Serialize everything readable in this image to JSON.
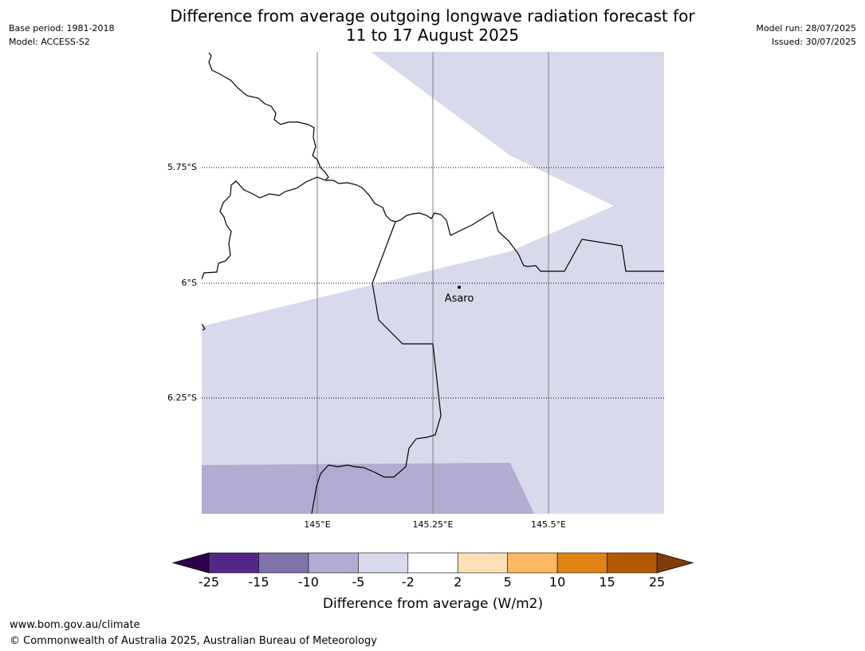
{
  "header": {
    "title_line1": "Difference from average outgoing longwave radiation forecast for",
    "title_line2": "11 to 17 August 2025",
    "base_period": "Base period: 1981-2018",
    "model": "Model: ACCESS-S2",
    "model_run": "Model run: 28/07/2025",
    "issued": "Issued: 30/07/2025"
  },
  "map": {
    "lat_labels": [
      "5.75°S",
      "6°S",
      "6.25°S"
    ],
    "lon_labels": [
      "145°E",
      "145.25°E",
      "145.5°E"
    ],
    "place_name": "Asaro"
  },
  "colorbar": {
    "title": "Difference from average (W/m2)",
    "ticks": [
      "-25",
      "-15",
      "-10",
      "-5",
      "-2",
      "2",
      "5",
      "10",
      "15",
      "25"
    ],
    "colors": [
      "#2d004b",
      "#542788",
      "#8073ac",
      "#b2abd2",
      "#d8daeb",
      "#ffffff",
      "#fee0b6",
      "#fdb863",
      "#e08214",
      "#b35806",
      "#7f3b08"
    ]
  },
  "footer": {
    "url": "www.bom.gov.au/climate",
    "copyright": "© Commonwealth of Australia 2025, Australian Bureau of Meteorology"
  }
}
